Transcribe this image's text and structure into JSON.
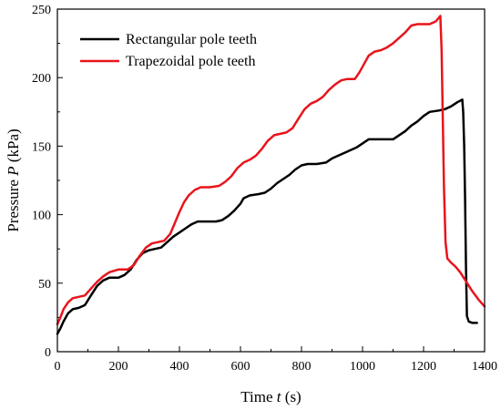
{
  "chart_data": {
    "type": "line",
    "title": "",
    "xlabel": {
      "prefix": "Time ",
      "var": "t",
      "suffix": " (s)"
    },
    "ylabel": {
      "prefix": "Pressure ",
      "var": "P",
      "suffix": " (kPa)"
    },
    "xlim": [
      0,
      1400
    ],
    "ylim": [
      0,
      250
    ],
    "xticks": [
      0,
      200,
      400,
      600,
      800,
      1000,
      1200,
      1400
    ],
    "yticks": [
      0,
      50,
      100,
      150,
      200,
      250
    ],
    "grid": false,
    "legend": "top-left",
    "series": [
      {
        "name": "Rectangular pole teeth",
        "color": "#000000",
        "points": [
          [
            0,
            13
          ],
          [
            10,
            17
          ],
          [
            20,
            22
          ],
          [
            35,
            28
          ],
          [
            50,
            31
          ],
          [
            70,
            32
          ],
          [
            90,
            34
          ],
          [
            110,
            41
          ],
          [
            130,
            48
          ],
          [
            150,
            52
          ],
          [
            170,
            54
          ],
          [
            200,
            54
          ],
          [
            220,
            56
          ],
          [
            240,
            60
          ],
          [
            260,
            67
          ],
          [
            280,
            72
          ],
          [
            300,
            74
          ],
          [
            320,
            75
          ],
          [
            340,
            76
          ],
          [
            360,
            80
          ],
          [
            380,
            84
          ],
          [
            400,
            87
          ],
          [
            420,
            90
          ],
          [
            440,
            93
          ],
          [
            460,
            95
          ],
          [
            480,
            95
          ],
          [
            500,
            95
          ],
          [
            520,
            95
          ],
          [
            540,
            96
          ],
          [
            560,
            99
          ],
          [
            580,
            103
          ],
          [
            600,
            108
          ],
          [
            610,
            112
          ],
          [
            630,
            114
          ],
          [
            660,
            115
          ],
          [
            680,
            116
          ],
          [
            700,
            119
          ],
          [
            720,
            123
          ],
          [
            740,
            126
          ],
          [
            760,
            129
          ],
          [
            780,
            133
          ],
          [
            800,
            136
          ],
          [
            820,
            137
          ],
          [
            850,
            137
          ],
          [
            880,
            138
          ],
          [
            900,
            141
          ],
          [
            920,
            143
          ],
          [
            950,
            146
          ],
          [
            980,
            149
          ],
          [
            1000,
            152
          ],
          [
            1020,
            155
          ],
          [
            1050,
            155
          ],
          [
            1080,
            155
          ],
          [
            1100,
            155
          ],
          [
            1120,
            158
          ],
          [
            1140,
            161
          ],
          [
            1160,
            165
          ],
          [
            1180,
            168
          ],
          [
            1200,
            172
          ],
          [
            1220,
            175
          ],
          [
            1250,
            176
          ],
          [
            1270,
            177
          ],
          [
            1290,
            179
          ],
          [
            1310,
            182
          ],
          [
            1327,
            184
          ],
          [
            1330,
            175
          ],
          [
            1333,
            150
          ],
          [
            1336,
            110
          ],
          [
            1339,
            60
          ],
          [
            1342,
            26
          ],
          [
            1348,
            22
          ],
          [
            1360,
            21
          ],
          [
            1375,
            21
          ]
        ]
      },
      {
        "name": "Trapezoidal pole teeth",
        "color": "#e8141c",
        "points": [
          [
            0,
            20
          ],
          [
            10,
            25
          ],
          [
            20,
            31
          ],
          [
            35,
            36
          ],
          [
            50,
            39
          ],
          [
            70,
            40
          ],
          [
            90,
            41
          ],
          [
            110,
            46
          ],
          [
            130,
            51
          ],
          [
            150,
            55
          ],
          [
            170,
            58
          ],
          [
            200,
            60
          ],
          [
            230,
            60
          ],
          [
            250,
            63
          ],
          [
            270,
            70
          ],
          [
            290,
            76
          ],
          [
            310,
            79
          ],
          [
            330,
            80
          ],
          [
            350,
            81
          ],
          [
            370,
            86
          ],
          [
            385,
            94
          ],
          [
            400,
            102
          ],
          [
            415,
            109
          ],
          [
            430,
            114
          ],
          [
            450,
            118
          ],
          [
            470,
            120
          ],
          [
            500,
            120
          ],
          [
            530,
            121
          ],
          [
            550,
            124
          ],
          [
            570,
            128
          ],
          [
            590,
            134
          ],
          [
            610,
            138
          ],
          [
            630,
            140
          ],
          [
            650,
            143
          ],
          [
            670,
            148
          ],
          [
            690,
            154
          ],
          [
            710,
            158
          ],
          [
            730,
            159
          ],
          [
            750,
            160
          ],
          [
            770,
            163
          ],
          [
            790,
            170
          ],
          [
            810,
            177
          ],
          [
            830,
            181
          ],
          [
            850,
            183
          ],
          [
            870,
            186
          ],
          [
            890,
            191
          ],
          [
            910,
            195
          ],
          [
            930,
            198
          ],
          [
            950,
            199
          ],
          [
            975,
            199
          ],
          [
            990,
            204
          ],
          [
            1005,
            210
          ],
          [
            1020,
            216
          ],
          [
            1040,
            219
          ],
          [
            1060,
            220
          ],
          [
            1080,
            222
          ],
          [
            1100,
            225
          ],
          [
            1120,
            229
          ],
          [
            1140,
            233
          ],
          [
            1160,
            238
          ],
          [
            1180,
            239
          ],
          [
            1200,
            239
          ],
          [
            1220,
            239
          ],
          [
            1240,
            241
          ],
          [
            1255,
            245
          ],
          [
            1259,
            220
          ],
          [
            1263,
            170
          ],
          [
            1267,
            120
          ],
          [
            1272,
            80
          ],
          [
            1278,
            68
          ],
          [
            1290,
            65
          ],
          [
            1305,
            62
          ],
          [
            1320,
            58
          ],
          [
            1340,
            51
          ],
          [
            1360,
            44
          ],
          [
            1380,
            38
          ],
          [
            1400,
            33
          ]
        ]
      }
    ]
  }
}
